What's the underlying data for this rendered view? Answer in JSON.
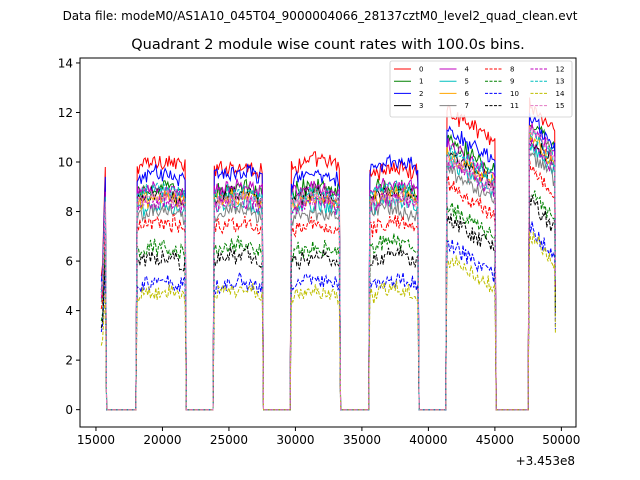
{
  "chart_data": {
    "type": "line",
    "suptitle": "Data file: modeM0/AS1A10_045T04_9000004066_28137cztM0_level2_quad_clean.evt",
    "title": "Quadrant 2 module wise count rates with 100.0s bins.",
    "xlabel": "",
    "ylabel": "",
    "x_offset_label": "+3.453e8",
    "xlim": [
      13800,
      51100
    ],
    "ylim": [
      -0.7,
      14.2
    ],
    "x_ticks": [
      15000,
      20000,
      25000,
      30000,
      35000,
      40000,
      45000,
      50000
    ],
    "x_tick_labels": [
      "15000",
      "20000",
      "25000",
      "30000",
      "35000",
      "40000",
      "45000",
      "50000"
    ],
    "y_ticks": [
      0,
      2,
      4,
      6,
      8,
      10,
      12,
      14
    ],
    "y_tick_labels": [
      "0",
      "2",
      "4",
      "6",
      "8",
      "10",
      "12",
      "14"
    ],
    "legend_position": "top-right",
    "bin_seconds": 100.0,
    "segments": [
      {
        "start": 15500,
        "end": 15700
      },
      {
        "start": 18100,
        "end": 21700
      },
      {
        "start": 23900,
        "end": 27500
      },
      {
        "start": 29700,
        "end": 33300
      },
      {
        "start": 35600,
        "end": 39200
      },
      {
        "start": 41400,
        "end": 45000
      },
      {
        "start": 47600,
        "end": 49500
      }
    ],
    "series": [
      {
        "name": "0",
        "color": "#ff0000",
        "dash": "solid",
        "levels": [
          9.8,
          9.9,
          9.7,
          9.9,
          9.6,
          11.2,
          11.5
        ]
      },
      {
        "name": "1",
        "color": "#008000",
        "dash": "solid",
        "levels": [
          8.8,
          8.8,
          8.8,
          8.9,
          8.9,
          10.0,
          10.8
        ]
      },
      {
        "name": "2",
        "color": "#0000ff",
        "dash": "solid",
        "levels": [
          9.4,
          9.4,
          9.5,
          9.4,
          9.8,
          10.4,
          11.0
        ]
      },
      {
        "name": "3",
        "color": "#000000",
        "dash": "solid",
        "levels": [
          8.6,
          8.5,
          8.6,
          8.6,
          8.6,
          9.4,
          10.2
        ]
      },
      {
        "name": "4",
        "color": "#bf00bf",
        "dash": "solid",
        "levels": [
          8.8,
          8.8,
          8.9,
          8.8,
          9.0,
          9.8,
          10.6
        ]
      },
      {
        "name": "5",
        "color": "#00bfbf",
        "dash": "solid",
        "levels": [
          8.1,
          8.1,
          8.2,
          8.1,
          8.3,
          9.1,
          9.8
        ]
      },
      {
        "name": "6",
        "color": "#ffa500",
        "dash": "solid",
        "levels": [
          8.4,
          8.4,
          8.5,
          8.4,
          8.6,
          9.4,
          10.2
        ]
      },
      {
        "name": "7",
        "color": "#808080",
        "dash": "solid",
        "levels": [
          7.9,
          7.8,
          7.9,
          7.8,
          8.0,
          8.8,
          9.6
        ]
      },
      {
        "name": "8",
        "color": "#ff0000",
        "dash": "dashed",
        "levels": [
          7.4,
          7.4,
          7.4,
          7.3,
          7.4,
          8.2,
          9.0
        ]
      },
      {
        "name": "9",
        "color": "#008000",
        "dash": "dashed",
        "levels": [
          6.5,
          6.4,
          6.5,
          6.4,
          6.6,
          7.3,
          8.0
        ]
      },
      {
        "name": "10",
        "color": "#0000ff",
        "dash": "dashed",
        "levels": [
          5.7,
          5.1,
          5.0,
          5.1,
          5.1,
          5.8,
          6.5
        ]
      },
      {
        "name": "11",
        "color": "#000000",
        "dash": "dashed",
        "levels": [
          6.0,
          6.0,
          6.1,
          6.0,
          6.1,
          6.8,
          7.6
        ]
      },
      {
        "name": "12",
        "color": "#bf00bf",
        "dash": "dashed",
        "levels": [
          8.2,
          8.3,
          8.3,
          8.2,
          8.4,
          9.2,
          10.0
        ]
      },
      {
        "name": "13",
        "color": "#00bfbf",
        "dash": "dashed",
        "levels": [
          8.6,
          8.7,
          8.7,
          8.6,
          8.8,
          9.6,
          10.4
        ]
      },
      {
        "name": "14",
        "color": "#bfbf00",
        "dash": "dashed",
        "levels": [
          4.7,
          4.6,
          4.8,
          4.6,
          4.7,
          5.2,
          6.2
        ]
      },
      {
        "name": "15",
        "color": "#e377c2",
        "dash": "dashed",
        "levels": [
          8.4,
          8.5,
          8.4,
          8.5,
          8.5,
          9.2,
          10.6
        ]
      }
    ]
  }
}
